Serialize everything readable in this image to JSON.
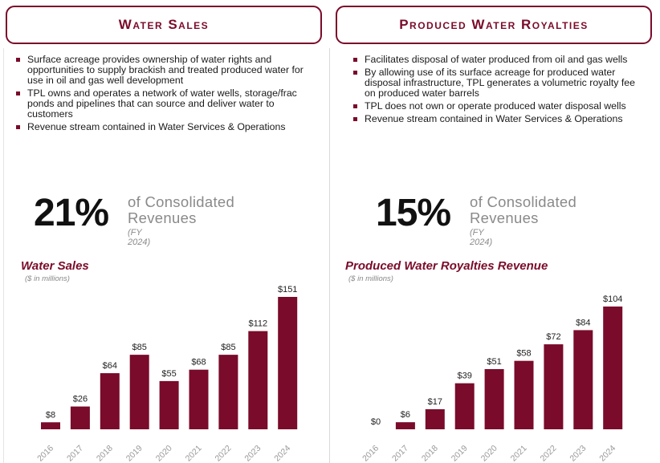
{
  "colors": {
    "accent": "#7a0b2a",
    "muted": "#8a8a8a"
  },
  "left": {
    "header": "Water Sales",
    "bullets": [
      "Surface acreage provides ownership of water rights and opportunities to supply brackish and treated produced water for use in oil and gas well development",
      "TPL owns and operates a network of water wells, storage/frac ponds and pipelines that can source and deliver water to customers",
      "Revenue stream contained in Water Services & Operations"
    ],
    "stat_value": "21%",
    "stat_line1": "of Consolidated",
    "stat_line2": "Revenues",
    "stat_sub": "(FY 2024)"
  },
  "right": {
    "header": "Produced Water Royalties",
    "bullets": [
      "Facilitates disposal of water produced from oil and gas wells",
      "By allowing use of its surface acreage for produced water disposal infrastructure, TPL generates a volumetric royalty fee on produced water barrels",
      "TPL does not own or operate produced water disposal wells",
      "Revenue stream contained in Water Services & Operations"
    ],
    "stat_value": "15%",
    "stat_line1": "of Consolidated",
    "stat_line2": "Revenues",
    "stat_sub": "(FY 2024)"
  },
  "chart_data": [
    {
      "type": "bar",
      "title": "Water Sales",
      "subtitle": "($ in millions)",
      "categories": [
        "2016",
        "2017",
        "2018",
        "2019",
        "2020",
        "2021",
        "2022",
        "2023",
        "2024"
      ],
      "values": [
        8,
        26,
        64,
        85,
        55,
        68,
        85,
        112,
        151
      ],
      "value_labels": [
        "$8",
        "$26",
        "$64",
        "$85",
        "$55",
        "$68",
        "$85",
        "$112",
        "$151"
      ],
      "ylim": [
        0,
        151
      ],
      "grid": false,
      "color": "#7a0b2a"
    },
    {
      "type": "bar",
      "title": "Produced Water Royalties Revenue",
      "subtitle": "($ in millions)",
      "categories": [
        "2016",
        "2017",
        "2018",
        "2019",
        "2020",
        "2021",
        "2022",
        "2023",
        "2024"
      ],
      "values": [
        0,
        6,
        17,
        39,
        51,
        58,
        72,
        84,
        104
      ],
      "value_labels": [
        "$0",
        "$6",
        "$17",
        "$39",
        "$51",
        "$58",
        "$72",
        "$84",
        "$104"
      ],
      "ylim": [
        0,
        104
      ],
      "grid": false,
      "color": "#7a0b2a"
    }
  ]
}
